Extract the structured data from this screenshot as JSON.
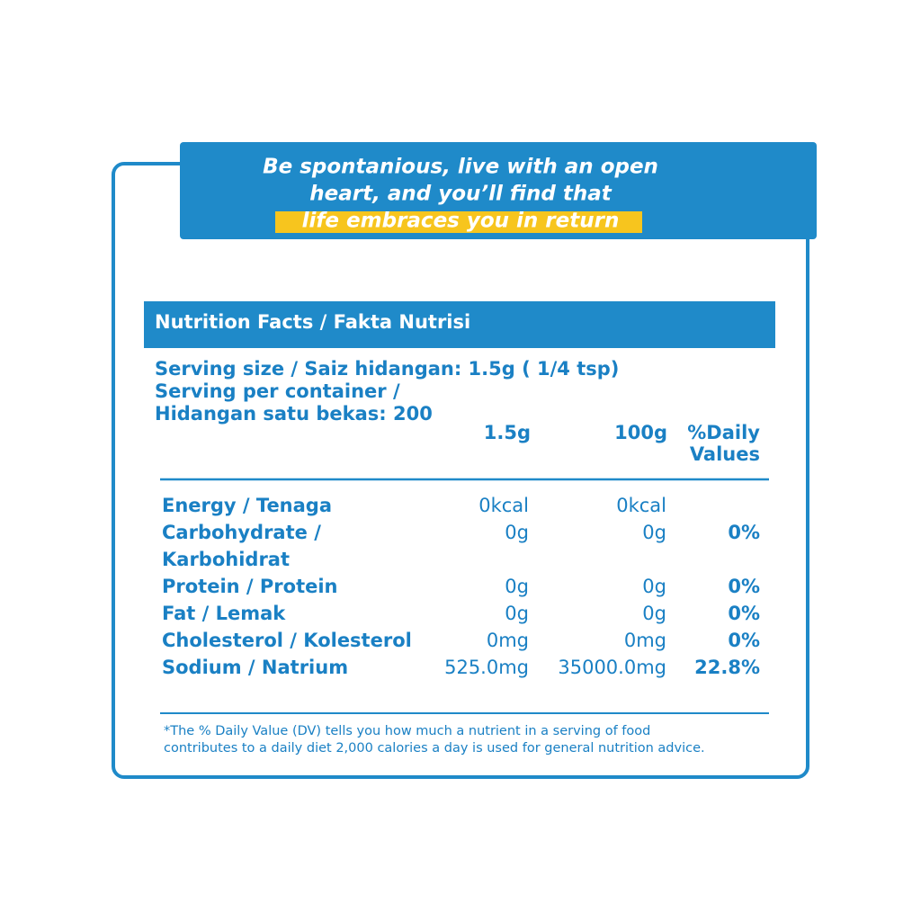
{
  "banner": {
    "lines": [
      "Be spontanious, live with an open",
      "heart, and you’ll find that",
      "life embraces you in return"
    ]
  },
  "header": {
    "title": "Nutrition Facts  / Fakta Nutrisi"
  },
  "serving": [
    "Serving size / Saiz hidangan: 1.5g ( 1/4 tsp)",
    "Serving per container /",
    "Hidangan satu bekas: 200"
  ],
  "table": {
    "columns": {
      "per_serving": "1.5g",
      "per_100g": "100g",
      "daily_value": [
        "%Daily",
        "Values"
      ]
    },
    "rows": [
      {
        "name": [
          "Energy / Tenaga"
        ],
        "per_serving": "0kcal",
        "per_100g": "0kcal"
      },
      {
        "name": [
          "Carbohydrate /",
          "Karbohidrat"
        ],
        "per_serving": "0g",
        "per_100g": "0g",
        "daily_value": "0%"
      },
      {
        "name": [
          "Protein / Protein"
        ],
        "per_serving": "0g",
        "per_100g": "0g",
        "daily_value": "0%"
      },
      {
        "name": [
          "Fat / Lemak"
        ],
        "per_serving": "0g",
        "per_100g": "0g",
        "daily_value": "0%"
      },
      {
        "name": [
          "Cholesterol / Kolesterol"
        ],
        "per_serving": "0mg",
        "per_100g": "0mg",
        "daily_value": "0%"
      },
      {
        "name": [
          "Sodium / Natrium"
        ],
        "per_serving": "525.0mg",
        "per_100g": "35000.0mg",
        "daily_value": "22.8%"
      }
    ]
  },
  "footnote": [
    "*The % Daily Value (DV) tells you how much a nutrient in a serving of food",
    "contributes to a daily diet 2,000 calories a day is used for general nutrition advice."
  ]
}
